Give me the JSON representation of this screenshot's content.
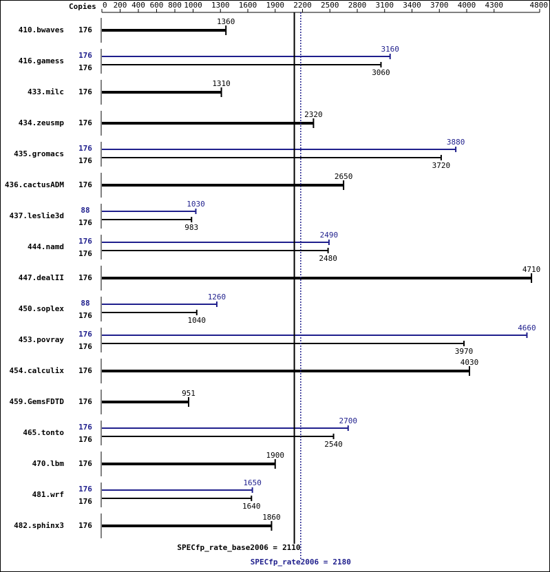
{
  "chart_data": {
    "type": "bar",
    "orientation": "horizontal",
    "copies_label": "Copies",
    "categories": [
      "410.bwaves",
      "416.gamess",
      "433.milc",
      "434.zeusmp",
      "435.gromacs",
      "436.cactusADM",
      "437.leslie3d",
      "444.namd",
      "447.dealII",
      "450.soplex",
      "453.povray",
      "454.calculix",
      "459.GemsFDTD",
      "465.tonto",
      "470.lbm",
      "481.wrf",
      "482.sphinx3"
    ],
    "series": [
      {
        "color": "#000000",
        "copies": [
          176,
          176,
          176,
          176,
          176,
          176,
          176,
          176,
          176,
          176,
          176,
          176,
          176,
          176,
          176,
          176,
          176
        ],
        "values": [
          1360,
          3060,
          1310,
          2320,
          3720,
          2650,
          983,
          2480,
          4710,
          1040,
          3970,
          4030,
          951,
          2540,
          1900,
          1640,
          1860
        ]
      },
      {
        "color": "#1e1e8c",
        "copies": [
          null,
          176,
          null,
          null,
          176,
          null,
          88,
          176,
          null,
          88,
          176,
          null,
          null,
          176,
          null,
          176,
          null
        ],
        "values": [
          null,
          3160,
          null,
          null,
          3880,
          null,
          1030,
          2490,
          null,
          1260,
          4660,
          null,
          null,
          2700,
          null,
          1650,
          null
        ]
      }
    ],
    "xlim": [
      0,
      4800
    ],
    "xticks": [
      0,
      200,
      400,
      600,
      800,
      1000,
      1300,
      1600,
      1900,
      2200,
      2500,
      2800,
      3100,
      3400,
      3700,
      4000,
      4300,
      4800
    ],
    "reference_lines": [
      {
        "label": "SPECfp_rate_base2006 =",
        "value": 2110,
        "color": "#000000",
        "style": "solid"
      },
      {
        "label": "SPECfp_rate2006 =",
        "value": 2180,
        "color": "#1e1e8c",
        "style": "dotted"
      }
    ]
  }
}
